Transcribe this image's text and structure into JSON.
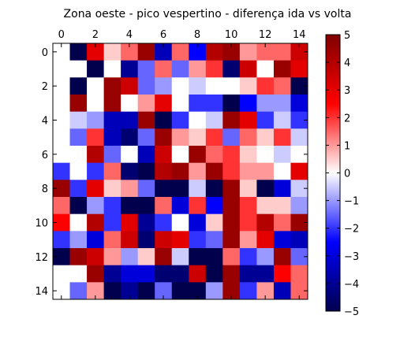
{
  "chart_data": {
    "type": "heatmap",
    "title": "Zona oeste - pico vespertino - diferença ida vs volta",
    "xlabel": "",
    "ylabel": "",
    "rows": 15,
    "cols": 15,
    "x_ticks": [
      0,
      2,
      4,
      6,
      8,
      10,
      12,
      14
    ],
    "y_ticks": [
      0,
      2,
      4,
      6,
      8,
      10,
      12,
      14
    ],
    "colormap": "seismic",
    "vmin": -5,
    "vmax": 5,
    "colorbar_ticks": [
      -5,
      -4,
      -3,
      -2,
      -1,
      0,
      1,
      2,
      3,
      4,
      5
    ],
    "colorbar_tick_labels": [
      "−5",
      "−4",
      "−3",
      "−2",
      "−1",
      "0",
      "1",
      "2",
      "3",
      "4",
      "5"
    ],
    "values": [
      [
        0,
        -5,
        3,
        0.5,
        1.5,
        4.5,
        -3.5,
        1.5,
        -2.5,
        4,
        4.5,
        1,
        1.5,
        1.5,
        3.5
      ],
      [
        0,
        0,
        -5,
        0,
        -4,
        -1.5,
        1.5,
        -1.5,
        1,
        2,
        -4.5,
        3.5,
        0,
        4.5,
        3
      ],
      [
        0,
        -5,
        0,
        4.5,
        3.5,
        -1.5,
        -1,
        0,
        -0.5,
        0,
        0,
        0.5,
        2,
        1.5,
        -5
      ],
      [
        0,
        4.5,
        0,
        4.5,
        0,
        1,
        3,
        0,
        -2,
        -2,
        -5,
        -2.5,
        -1,
        -1,
        -3
      ],
      [
        0,
        -0.5,
        -1,
        -3.5,
        -3.5,
        4.5,
        -5,
        -2,
        0,
        -0.5,
        4.5,
        3,
        -2,
        -0.5,
        -2
      ],
      [
        0,
        -1.5,
        2,
        -3.5,
        -4.5,
        -1.5,
        4.5,
        1,
        0.5,
        2,
        -1.5,
        1.5,
        0.5,
        2,
        -0.5
      ],
      [
        0,
        0,
        4,
        -1.5,
        0,
        -3.5,
        3.5,
        0,
        4.5,
        1.5,
        2,
        0.5,
        0,
        -0.5,
        0
      ],
      [
        -2,
        0,
        -2,
        1.5,
        -4.5,
        -5,
        4,
        4.5,
        1,
        4.5,
        2,
        1,
        1,
        0,
        3
      ],
      [
        4.5,
        -2,
        3,
        0.5,
        1,
        -1.5,
        -5,
        -5,
        -0.5,
        -5,
        4.5,
        0.5,
        -5,
        -3,
        -0.5
      ],
      [
        1.5,
        -5,
        -1,
        -2,
        -5,
        -5,
        1.5,
        -3,
        2,
        -2.5,
        4.5,
        2,
        0.5,
        0.5,
        -1
      ],
      [
        2.5,
        0,
        4,
        -2,
        3,
        -4,
        -2,
        0,
        -3,
        0.5,
        4.5,
        2,
        4,
        1.5,
        4.5
      ],
      [
        -2,
        -1,
        -3,
        1.5,
        3.5,
        -4.5,
        3.5,
        3,
        -2,
        -1.5,
        4.5,
        1,
        3,
        -3,
        -3.5
      ],
      [
        -5,
        4.5,
        3.5,
        1,
        -1,
        0.5,
        4.5,
        -0.5,
        -5,
        -5,
        1.5,
        -2,
        -1,
        4.5,
        -1.5
      ],
      [
        0,
        0,
        4.5,
        -4,
        -3,
        -3,
        -4.5,
        -4.5,
        3.5,
        -5,
        4.5,
        -4,
        -4,
        2.5,
        1.5
      ],
      [
        0,
        -1.5,
        1,
        -5,
        -4,
        -5,
        -1.5,
        -5,
        -5,
        -1,
        4.5,
        -2,
        1,
        -3.5,
        1.5
      ]
    ]
  }
}
